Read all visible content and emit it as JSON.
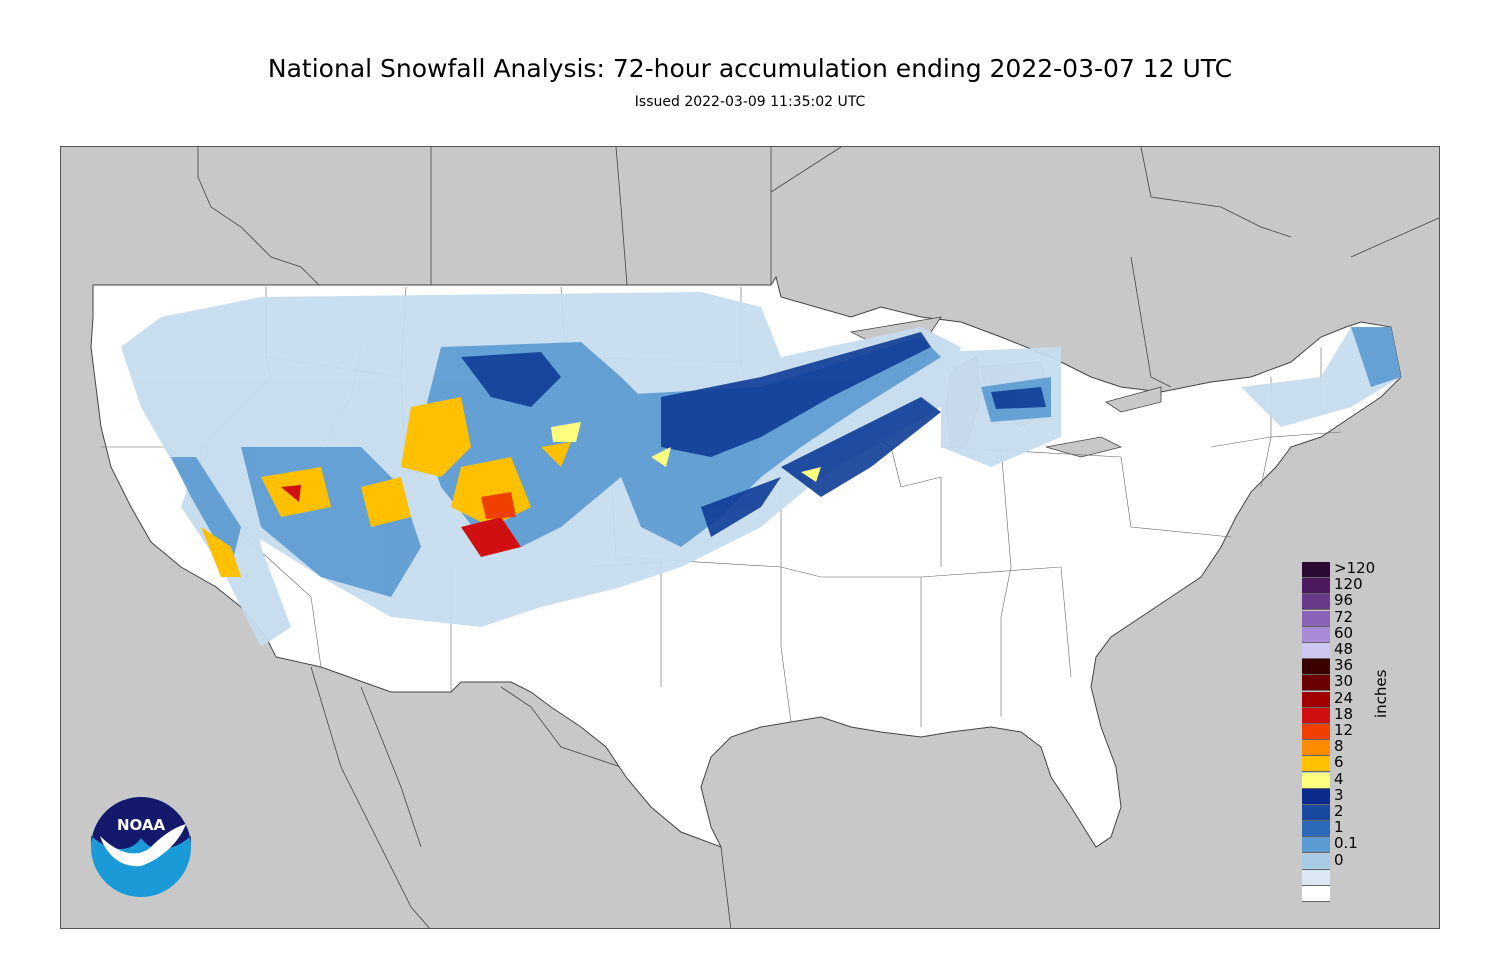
{
  "title": "National Snowfall Analysis: 72-hour accumulation ending 2022-03-07 12 UTC",
  "subtitle": "Issued 2022-03-09 11:35:02 UTC",
  "legend": {
    "unit": "inches",
    "labels": [
      ">120",
      "120",
      "96",
      "72",
      "60",
      "48",
      "36",
      "30",
      "24",
      "18",
      "12",
      "8",
      "6",
      "4",
      "3",
      "2",
      "1",
      "0.1",
      "0"
    ],
    "colors": [
      "#2a0a33",
      "#4b1a5e",
      "#6a3a8a",
      "#8a62b8",
      "#a88ad8",
      "#cfc7f2",
      "#3a0000",
      "#6b0000",
      "#a00000",
      "#d01010",
      "#f04000",
      "#ff8c00",
      "#ffc000",
      "#ffff80",
      "#0a2a8c",
      "#1a4aa0",
      "#2a6ab8",
      "#5a9ad2",
      "#a8cce6",
      "#dbe8f3",
      "#ffffff"
    ]
  },
  "logo": {
    "text": "NOAA"
  },
  "colors": {
    "land_outside": "#c8c8c8",
    "conus": "#ffffff",
    "light_snow": "#c6dcee",
    "mid_snow": "#5a9ad2",
    "heavy_snow": "#0f3c96",
    "deep_snow": "#ffc000"
  }
}
